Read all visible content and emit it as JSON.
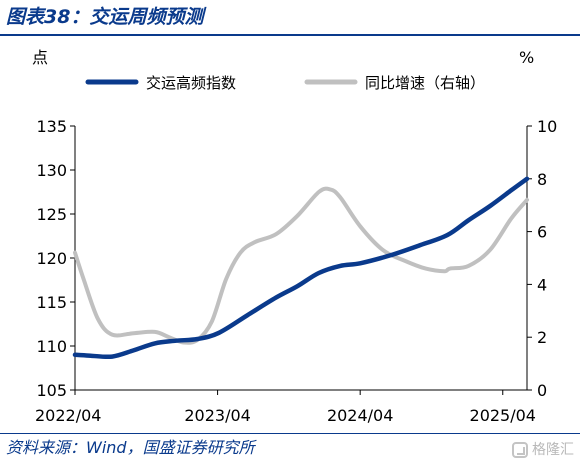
{
  "title": "图表38：交运周频预测",
  "source": "资料来源：Wind，国盛证券研究所",
  "watermark": "格隆汇",
  "chart_data": {
    "type": "line",
    "left_unit": "点",
    "right_unit": "%",
    "x_ticks": [
      "2022/04",
      "2023/04",
      "2024/04",
      "2025/04"
    ],
    "ylim_left": [
      105,
      135
    ],
    "ylim_right": [
      0,
      10
    ],
    "y_ticks_left": [
      105,
      110,
      115,
      120,
      125,
      130,
      135
    ],
    "y_ticks_right": [
      0,
      2,
      4,
      6,
      8,
      10
    ],
    "legend_position": "top",
    "grid": false,
    "series": [
      {
        "name": "交运高频指数",
        "axis": "left",
        "color": "#0a3a8c",
        "x": [
          2022.29,
          2022.4,
          2022.55,
          2022.7,
          2022.85,
          2023.0,
          2023.15,
          2023.3,
          2023.5,
          2023.7,
          2023.85,
          2024.0,
          2024.15,
          2024.29,
          2024.5,
          2024.7,
          2024.9,
          2025.05,
          2025.2,
          2025.35,
          2025.46
        ],
        "values": [
          109.0,
          108.9,
          108.8,
          109.5,
          110.3,
          110.6,
          110.8,
          111.5,
          113.5,
          115.5,
          116.8,
          118.3,
          119.1,
          119.4,
          120.3,
          121.4,
          122.6,
          124.3,
          125.9,
          127.7,
          129.0
        ]
      },
      {
        "name": "同比增速（右轴）",
        "axis": "right",
        "color": "#c0c0c0",
        "x": [
          2022.29,
          2022.35,
          2022.45,
          2022.55,
          2022.7,
          2022.85,
          2022.95,
          2023.05,
          2023.15,
          2023.25,
          2023.35,
          2023.45,
          2023.55,
          2023.7,
          2023.85,
          2024.0,
          2024.08,
          2024.15,
          2024.29,
          2024.45,
          2024.6,
          2024.75,
          2024.88,
          2024.92,
          2025.05,
          2025.2,
          2025.35,
          2025.46
        ],
        "values": [
          5.2,
          4.2,
          2.7,
          2.1,
          2.15,
          2.2,
          2.0,
          1.8,
          1.9,
          2.6,
          4.2,
          5.2,
          5.6,
          5.9,
          6.6,
          7.5,
          7.6,
          7.3,
          6.2,
          5.3,
          4.9,
          4.6,
          4.5,
          4.6,
          4.7,
          5.3,
          6.5,
          7.2
        ]
      }
    ]
  }
}
